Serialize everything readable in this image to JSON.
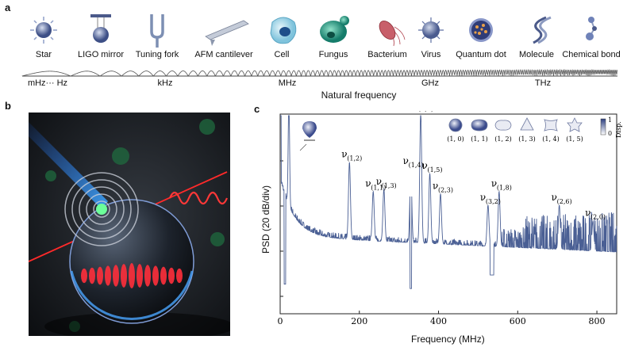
{
  "panels": {
    "a": "a",
    "b": "b",
    "c": "c"
  },
  "scale_objects": [
    {
      "label": "Star",
      "icon": "star-icon"
    },
    {
      "label": "LIGO mirror",
      "icon": "ligo-mirror-icon"
    },
    {
      "label": "Tuning fork",
      "icon": "tuning-fork-icon"
    },
    {
      "label": "AFM cantilever",
      "icon": "afm-cantilever-icon"
    },
    {
      "label": "Cell",
      "icon": "cell-icon"
    },
    {
      "label": "Fungus",
      "icon": "fungus-icon"
    },
    {
      "label": "Bacterium",
      "icon": "bacterium-icon"
    },
    {
      "label": "Virus",
      "icon": "virus-icon"
    },
    {
      "label": "Quantum dot",
      "icon": "quantum-dot-icon"
    },
    {
      "label": "Molecule",
      "icon": "molecule-icon"
    },
    {
      "label": "Chemical bond",
      "icon": "chemical-bond-icon"
    }
  ],
  "frequency_axis": {
    "ticks": [
      "mHz··· Hz",
      "kHz",
      "MHz",
      "GHz",
      "THz"
    ],
    "title": "Natural frequency"
  },
  "chart_data": {
    "type": "line",
    "xlabel": "Frequency (MHz)",
    "ylabel": "PSD (20 dB/div)",
    "xlim": [
      0,
      850
    ],
    "xticks": [
      0,
      200,
      400,
      600,
      800
    ],
    "series_color": "#4a5f94",
    "peaks": [
      {
        "x": 22,
        "y_div": 3.6,
        "label": "ν",
        "sub": "a"
      },
      {
        "x": 175,
        "y_div": 2.2,
        "label": "ν",
        "sub": "(1,2)"
      },
      {
        "x": 235,
        "y_div": 1.55,
        "label": "ν",
        "sub": "(1,1)"
      },
      {
        "x": 262,
        "y_div": 1.6,
        "label": "ν",
        "sub": "(1,3)"
      },
      {
        "x": 330,
        "y_div": 2.05,
        "label": "ν",
        "sub": "(1,4)"
      },
      {
        "x": 355,
        "y_div": 3.3,
        "label": "ν",
        "sub": "(1,0)"
      },
      {
        "x": 378,
        "y_div": 1.95,
        "label": "ν",
        "sub": "(1,5)"
      },
      {
        "x": 405,
        "y_div": 1.5,
        "label": "ν",
        "sub": "(2,3)"
      },
      {
        "x": 525,
        "y_div": 1.25,
        "label": "ν",
        "sub": "(3,2)"
      },
      {
        "x": 553,
        "y_div": 1.55,
        "label": "ν",
        "sub": "(1,8)"
      },
      {
        "x": 705,
        "y_div": 1.25,
        "label": "ν",
        "sub": "(2,6)"
      },
      {
        "x": 790,
        "y_div": 0.9,
        "label": "ν",
        "sub": "(2,0)"
      }
    ],
    "mode_legend": [
      "(1, 0)",
      "(1, 1)",
      "(1, 2)",
      "(1, 3)",
      "(1, 4)",
      "(1, 5)"
    ],
    "colorbar": {
      "max": "1",
      "min": "0",
      "label": "Disp."
    }
  }
}
